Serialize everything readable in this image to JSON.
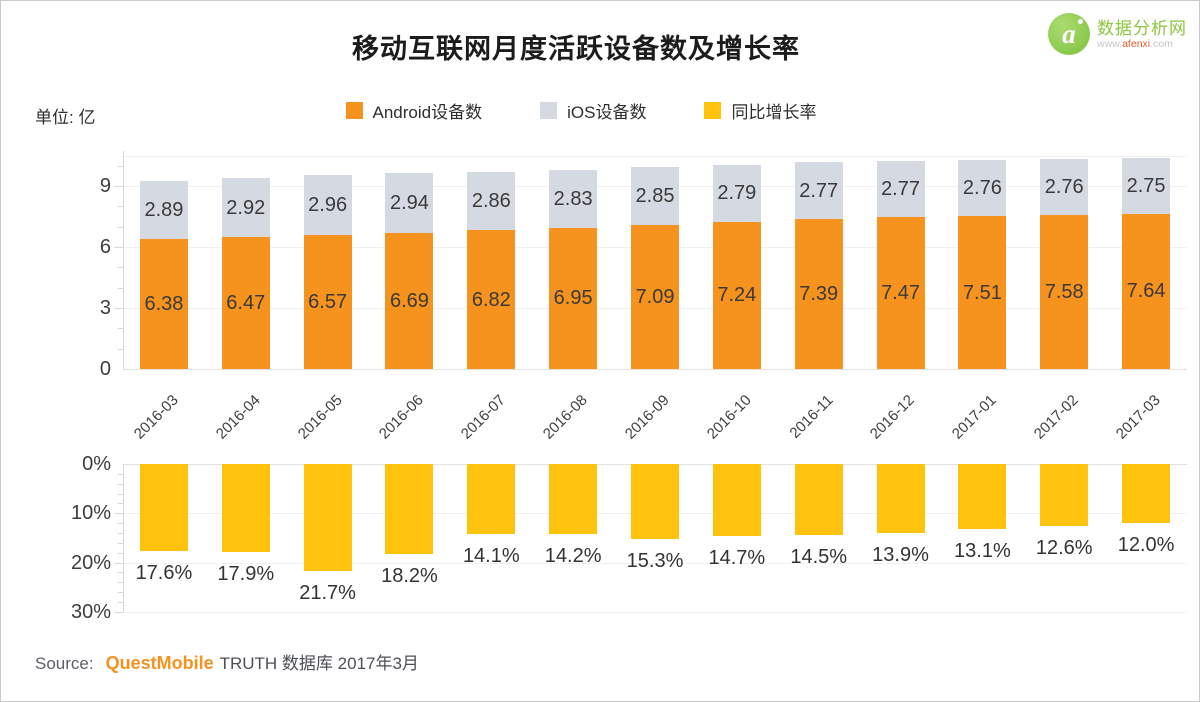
{
  "title": "移动互联网月度活跃设备数及增长率",
  "unit_label": "单位: 亿",
  "logo": {
    "glyph": "a",
    "name": "数据分析网",
    "url_prefix": "www.",
    "url_highlight": "afenxi",
    "url_suffix": ".com"
  },
  "legend": [
    {
      "label": "Android设备数",
      "color": "#F6921E"
    },
    {
      "label": "iOS设备数",
      "color": "#D5D9E2"
    },
    {
      "label": "同比增长率",
      "color": "#FFC30D"
    }
  ],
  "source": {
    "prefix": "Source:",
    "brand": "QuestMobile",
    "suffix": "TRUTH 数据库 2017年3月"
  },
  "chart_data": [
    {
      "type": "bar",
      "stacked": true,
      "title": "移动互联网月度活跃设备数",
      "unit": "亿",
      "categories": [
        "2016-03",
        "2016-04",
        "2016-05",
        "2016-06",
        "2016-07",
        "2016-08",
        "2016-09",
        "2016-10",
        "2016-11",
        "2016-12",
        "2017-01",
        "2017-02",
        "2017-03"
      ],
      "series": [
        {
          "name": "Android设备数",
          "color": "#F6921E",
          "values": [
            6.38,
            6.47,
            6.57,
            6.69,
            6.82,
            6.95,
            7.09,
            7.24,
            7.39,
            7.47,
            7.51,
            7.58,
            7.64
          ]
        },
        {
          "name": "iOS设备数",
          "color": "#D5D9E2",
          "values": [
            2.89,
            2.92,
            2.96,
            2.94,
            2.86,
            2.83,
            2.85,
            2.79,
            2.77,
            2.77,
            2.76,
            2.76,
            2.75
          ]
        }
      ],
      "yticks": [
        0,
        3,
        6,
        9
      ],
      "ylim": [
        0,
        10.5
      ],
      "grid": true,
      "legend_position": "top",
      "value_labels": "inside"
    },
    {
      "type": "bar",
      "inverted": true,
      "title": "同比增长率",
      "categories": [
        "2016-03",
        "2016-04",
        "2016-05",
        "2016-06",
        "2016-07",
        "2016-08",
        "2016-09",
        "2016-10",
        "2016-11",
        "2016-12",
        "2017-01",
        "2017-02",
        "2017-03"
      ],
      "series": [
        {
          "name": "同比增长率",
          "color": "#FFC30D",
          "values": [
            17.6,
            17.9,
            21.7,
            18.2,
            14.1,
            14.2,
            15.3,
            14.7,
            14.5,
            13.9,
            13.1,
            12.6,
            12.0
          ]
        }
      ],
      "value_suffix": "%",
      "yticks": [
        0,
        10,
        20,
        30
      ],
      "ylim": [
        0,
        30
      ],
      "grid": true,
      "value_labels": "below-bar"
    }
  ]
}
